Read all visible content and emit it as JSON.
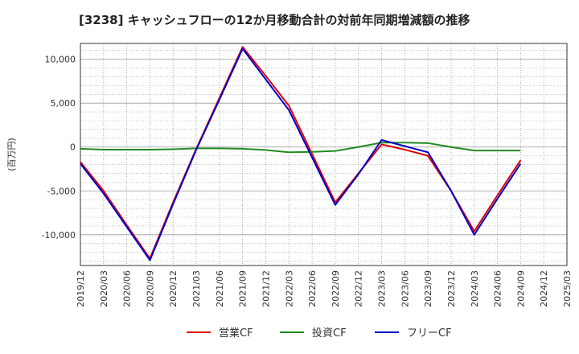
{
  "chart_data": {
    "type": "line",
    "title": "[3238]  キャッシュフローの12か月移動合計の対前年同期増減額の推移",
    "ylabel": "(百万円)",
    "xlabel": "",
    "ylim": [
      -13500,
      11800
    ],
    "yticks": [
      10000,
      5000,
      0,
      -5000,
      -10000
    ],
    "ytick_labels": [
      "10,000",
      "5,000",
      "0",
      "-5,000",
      "-10,000"
    ],
    "grid": true,
    "legend_position": "bottom",
    "categories": [
      "2019/12",
      "2020/03",
      "2020/06",
      "2020/09",
      "2020/12",
      "2021/03",
      "2021/06",
      "2021/09",
      "2021/12",
      "2022/03",
      "2022/06",
      "2022/09",
      "2022/12",
      "2023/03",
      "2023/06",
      "2023/09",
      "2023/12",
      "2024/03",
      "2024/06",
      "2024/09",
      "2024/12",
      "2025/03"
    ],
    "series": [
      {
        "name": "営業CF",
        "color": "#dd0000",
        "values": [
          -1700,
          -5000,
          -8900,
          -12700,
          -6300,
          -200,
          5600,
          11400,
          8100,
          4700,
          -800,
          -6300,
          -3000,
          300,
          -300,
          -1000,
          -5000,
          -9600,
          -5500,
          -1500,
          null,
          null
        ]
      },
      {
        "name": "投資CF",
        "color": "#228b22",
        "values": [
          -200,
          -300,
          -300,
          -300,
          -250,
          -150,
          -150,
          -200,
          -350,
          -600,
          -550,
          -450,
          0,
          500,
          500,
          450,
          0,
          -400,
          -400,
          -400,
          null,
          null
        ]
      },
      {
        "name": "フリーCF",
        "color": "#0000cc",
        "values": [
          -1900,
          -5300,
          -9100,
          -12900,
          -6500,
          -300,
          5400,
          11200,
          7700,
          4200,
          -1200,
          -6600,
          -3100,
          800,
          100,
          -600,
          -5000,
          -10000,
          -5900,
          -1900,
          null,
          null
        ]
      }
    ]
  }
}
